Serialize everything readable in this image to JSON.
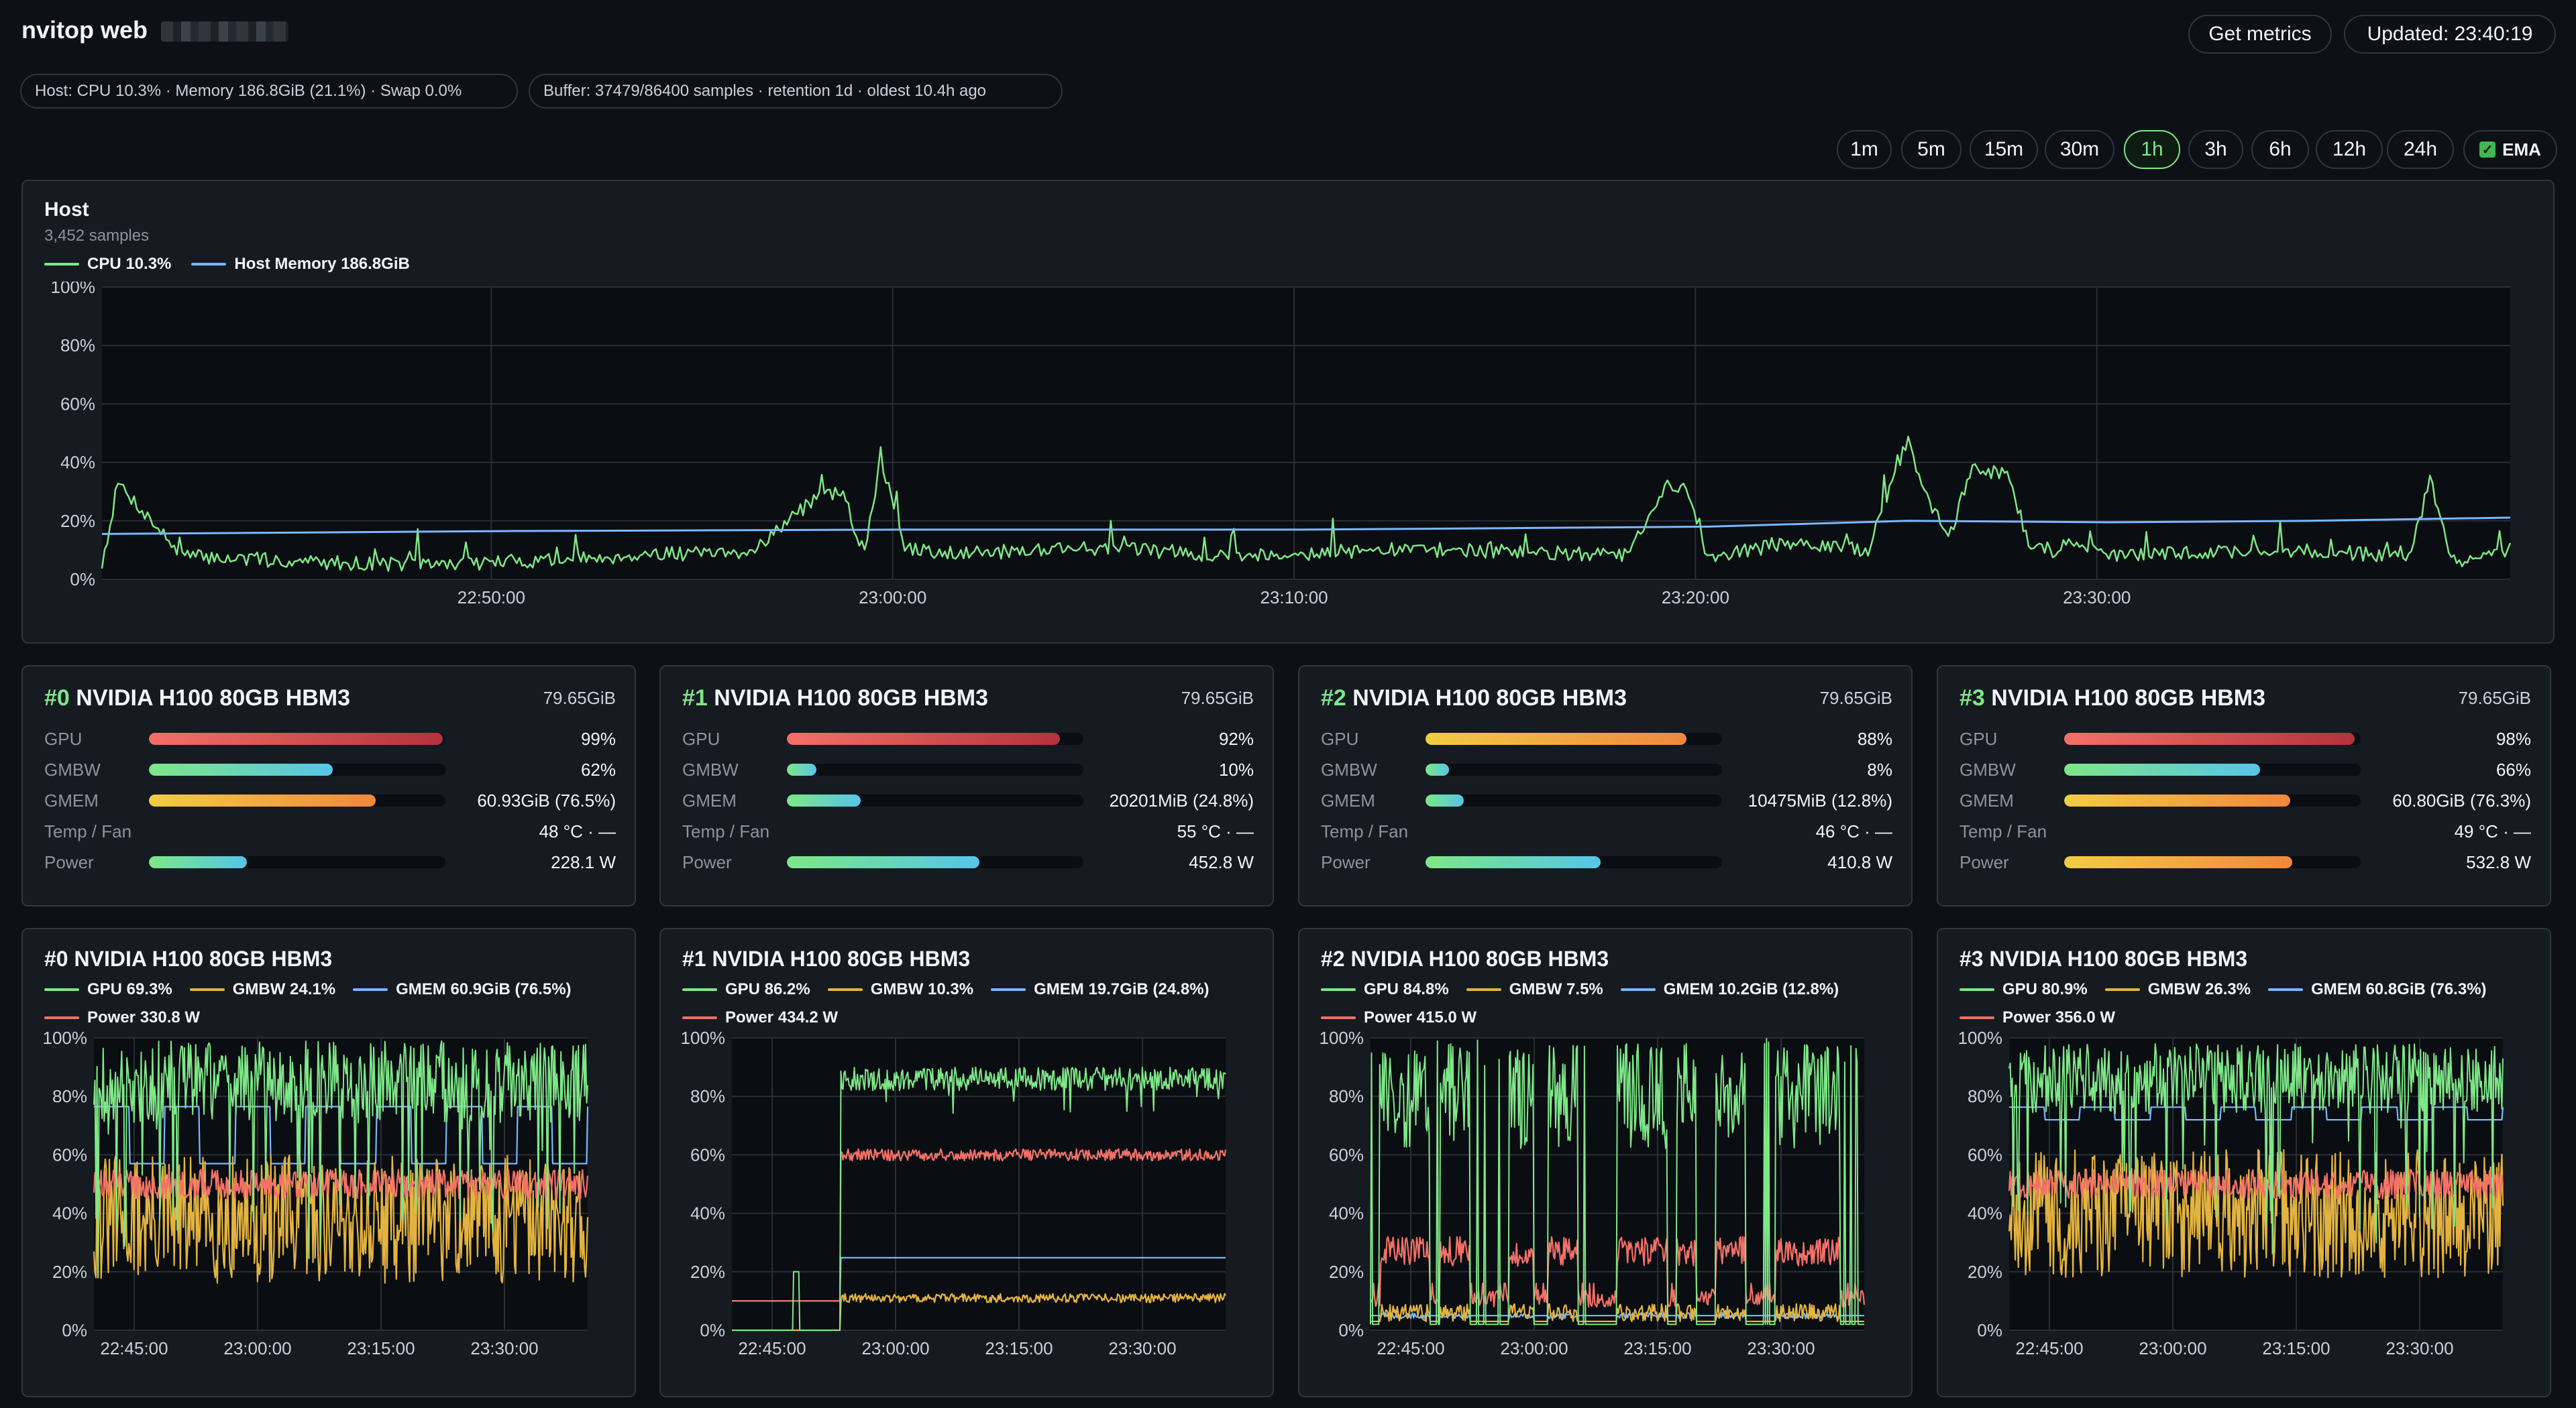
{
  "header": {
    "title": "nvitop web",
    "get_metrics": "Get metrics",
    "updated": "Updated: 23:40:19",
    "host_pill": "Host: CPU 10.3% · Memory 186.8GiB (21.1%) · Swap 0.0%",
    "buffer_pill": "Buffer: 37479/86400 samples · retention 1d · oldest 10.4h ago"
  },
  "ranges": {
    "items": [
      "1m",
      "5m",
      "15m",
      "30m",
      "1h",
      "3h",
      "6h",
      "12h",
      "24h"
    ],
    "active": "1h",
    "ema_label": "EMA",
    "ema_checked": true
  },
  "host": {
    "title": "Host",
    "samples": "3,452 samples",
    "legend": [
      {
        "label": "CPU 10.3%",
        "color": "#7ee787"
      },
      {
        "label": "Host Memory 186.8GiB",
        "color": "#79b8ff"
      }
    ]
  },
  "colors": {
    "gpu": "#7ee787",
    "gmbw": "#e3b341",
    "gmem": "#79b8ff",
    "power": "#f47067",
    "grid": "#2a2f36",
    "plot_bg": "#0a0d12",
    "axis_text": "#c9d1d9"
  },
  "gpus": [
    {
      "index": "#0",
      "name": "NVIDIA H100 80GB HBM3",
      "mem_total": "79.65GiB",
      "stats": [
        {
          "label": "GPU",
          "value": "99%",
          "fill": 0.99,
          "bar": "red"
        },
        {
          "label": "GMBW",
          "value": "62%",
          "fill": 0.62,
          "bar": "green-cyan"
        },
        {
          "label": "GMEM",
          "value": "60.93GiB (76.5%)",
          "fill": 0.765,
          "bar": "yellow-orange"
        },
        {
          "label": "Temp / Fan",
          "value": "48 °C  ·  —",
          "fill": null,
          "bar": null
        },
        {
          "label": "Power",
          "value": "228.1 W",
          "fill": 0.33,
          "bar": "green-cyan"
        }
      ],
      "chart_title": "#0 NVIDIA H100 80GB HBM3",
      "legend": [
        {
          "label": "GPU 69.3%",
          "color": "#7ee787"
        },
        {
          "label": "GMBW 24.1%",
          "color": "#e3b341"
        },
        {
          "label": "GMEM 60.9GiB (76.5%)",
          "color": "#79b8ff"
        },
        {
          "label": "Power 330.8 W",
          "color": "#f47067"
        }
      ]
    },
    {
      "index": "#1",
      "name": "NVIDIA H100 80GB HBM3",
      "mem_total": "79.65GiB",
      "stats": [
        {
          "label": "GPU",
          "value": "92%",
          "fill": 0.92,
          "bar": "red"
        },
        {
          "label": "GMBW",
          "value": "10%",
          "fill": 0.1,
          "bar": "green-cyan"
        },
        {
          "label": "GMEM",
          "value": "20201MiB (24.8%)",
          "fill": 0.248,
          "bar": "green-cyan"
        },
        {
          "label": "Temp / Fan",
          "value": "55 °C  ·  —",
          "fill": null,
          "bar": null
        },
        {
          "label": "Power",
          "value": "452.8 W",
          "fill": 0.65,
          "bar": "green-cyan"
        }
      ],
      "chart_title": "#1 NVIDIA H100 80GB HBM3",
      "legend": [
        {
          "label": "GPU 86.2%",
          "color": "#7ee787"
        },
        {
          "label": "GMBW 10.3%",
          "color": "#e3b341"
        },
        {
          "label": "GMEM 19.7GiB (24.8%)",
          "color": "#79b8ff"
        },
        {
          "label": "Power 434.2 W",
          "color": "#f47067"
        }
      ]
    },
    {
      "index": "#2",
      "name": "NVIDIA H100 80GB HBM3",
      "mem_total": "79.65GiB",
      "stats": [
        {
          "label": "GPU",
          "value": "88%",
          "fill": 0.88,
          "bar": "yellow-orange"
        },
        {
          "label": "GMBW",
          "value": "8%",
          "fill": 0.08,
          "bar": "green-cyan"
        },
        {
          "label": "GMEM",
          "value": "10475MiB (12.8%)",
          "fill": 0.128,
          "bar": "green-cyan"
        },
        {
          "label": "Temp / Fan",
          "value": "46 °C  ·  —",
          "fill": null,
          "bar": null
        },
        {
          "label": "Power",
          "value": "410.8 W",
          "fill": 0.59,
          "bar": "green-cyan"
        }
      ],
      "chart_title": "#2 NVIDIA H100 80GB HBM3",
      "legend": [
        {
          "label": "GPU 84.8%",
          "color": "#7ee787"
        },
        {
          "label": "GMBW 7.5%",
          "color": "#e3b341"
        },
        {
          "label": "GMEM 10.2GiB (12.8%)",
          "color": "#79b8ff"
        },
        {
          "label": "Power 415.0 W",
          "color": "#f47067"
        }
      ]
    },
    {
      "index": "#3",
      "name": "NVIDIA H100 80GB HBM3",
      "mem_total": "79.65GiB",
      "stats": [
        {
          "label": "GPU",
          "value": "98%",
          "fill": 0.98,
          "bar": "red"
        },
        {
          "label": "GMBW",
          "value": "66%",
          "fill": 0.66,
          "bar": "green-cyan"
        },
        {
          "label": "GMEM",
          "value": "60.80GiB (76.3%)",
          "fill": 0.763,
          "bar": "yellow-orange"
        },
        {
          "label": "Temp / Fan",
          "value": "49 °C  ·  —",
          "fill": null,
          "bar": null
        },
        {
          "label": "Power",
          "value": "532.8 W",
          "fill": 0.77,
          "bar": "yellow-orange"
        }
      ],
      "chart_title": "#3 NVIDIA H100 80GB HBM3",
      "legend": [
        {
          "label": "GPU 80.9%",
          "color": "#7ee787"
        },
        {
          "label": "GMBW 26.3%",
          "color": "#e3b341"
        },
        {
          "label": "GMEM 60.8GiB (76.3%)",
          "color": "#79b8ff"
        },
        {
          "label": "Power 356.0 W",
          "color": "#f47067"
        }
      ]
    }
  ],
  "chart_data": [
    {
      "type": "line",
      "title": "Host",
      "ylabel": "",
      "y_ticks": [
        "0%",
        "20%",
        "40%",
        "60%",
        "80%",
        "100%"
      ],
      "x_ticks": [
        "22:50:00",
        "23:00:00",
        "23:10:00",
        "23:20:00",
        "23:30:00"
      ],
      "ylim": [
        0,
        100
      ],
      "x_range_minutes": [
        -60,
        0
      ],
      "x_tick_minutes": [
        -50.3,
        -40.3,
        -30.3,
        -20.3,
        -10.3
      ],
      "series": [
        {
          "name": "CPU 10.3%",
          "key": "cpu",
          "x": [
            -60,
            -59.6,
            -58,
            -55,
            -52,
            -50,
            -48,
            -46,
            -44,
            -42,
            -41.5,
            -41,
            -40.6,
            -40,
            -38,
            -36,
            -34,
            -32,
            -30,
            -28,
            -26,
            -24,
            -22,
            -21,
            -20.5,
            -20,
            -18,
            -16,
            -15,
            -14.6,
            -14,
            -13.4,
            -12.5,
            -12,
            -11.4,
            -10.8,
            -10,
            -8,
            -6,
            -4,
            -2.5,
            -2,
            -1.5,
            -1,
            0
          ],
          "values": [
            5,
            33,
            8,
            6,
            5,
            6,
            7,
            9,
            8,
            30,
            28,
            8,
            42,
            10,
            9,
            11,
            10,
            8,
            9,
            10,
            10,
            9,
            8,
            32,
            30,
            8,
            12,
            10,
            48,
            30,
            14,
            38,
            36,
            12,
            10,
            13,
            8,
            9,
            10,
            9,
            8,
            34,
            8,
            6,
            10
          ]
        },
        {
          "name": "Host Memory 186.8GiB",
          "key": "mem",
          "x": [
            -60,
            -50,
            -40,
            -30,
            -25,
            -20,
            -15,
            -10,
            -5,
            0
          ],
          "values": [
            15.5,
            16.5,
            17,
            17,
            17.5,
            18,
            20,
            19.5,
            20,
            21.1
          ]
        }
      ]
    },
    {
      "type": "line",
      "title": "#0 NVIDIA H100 80GB HBM3",
      "y_ticks": [
        "0%",
        "20%",
        "40%",
        "60%",
        "80%",
        "100%"
      ],
      "x_ticks": [
        "22:45:00",
        "23:00:00",
        "23:15:00",
        "23:30:00"
      ],
      "ylim": [
        0,
        100
      ],
      "pattern": "busy",
      "series": [
        {
          "name": "GPU 69.3%",
          "key": "gpu",
          "base": 85,
          "jitter": 14,
          "dips": 0.35
        },
        {
          "name": "GMBW 24.1%",
          "key": "gmbw",
          "base": 38,
          "jitter": 22,
          "dips": 0
        },
        {
          "name": "GMEM 60.9GiB (76.5%)",
          "key": "gmem",
          "base": 76.5,
          "alt": 57,
          "jitter": 0,
          "dips": 0
        },
        {
          "name": "Power 330.8 W",
          "key": "power",
          "base": 50,
          "jitter": 5,
          "dips": 0
        }
      ]
    },
    {
      "type": "line",
      "title": "#1 NVIDIA H100 80GB HBM3",
      "y_ticks": [
        "0%",
        "20%",
        "40%",
        "60%",
        "80%",
        "100%"
      ],
      "x_ticks": [
        "22:45:00",
        "23:00:00",
        "23:15:00",
        "23:30:00"
      ],
      "ylim": [
        0,
        100
      ],
      "pattern": "start",
      "series": [
        {
          "name": "GPU 86.2%",
          "key": "gpu",
          "base": 86,
          "jitter": 4,
          "dips": 0
        },
        {
          "name": "GMBW 10.3%",
          "key": "gmbw",
          "base": 11,
          "jitter": 1.5,
          "dips": 0
        },
        {
          "name": "GMEM 19.7GiB (24.8%)",
          "key": "gmem",
          "base": 24.8,
          "jitter": 0,
          "dips": 0
        },
        {
          "name": "Power 434.2 W",
          "key": "power",
          "base": 60,
          "jitter": 2,
          "dips": 0
        }
      ]
    },
    {
      "type": "line",
      "title": "#2 NVIDIA H100 80GB HBM3",
      "y_ticks": [
        "0%",
        "20%",
        "40%",
        "60%",
        "80%",
        "100%"
      ],
      "x_ticks": [
        "22:45:00",
        "23:00:00",
        "23:15:00",
        "23:30:00"
      ],
      "ylim": [
        0,
        100
      ],
      "pattern": "bursty",
      "series": [
        {
          "name": "GPU 84.8%",
          "key": "gpu",
          "base": 55,
          "jitter": 18,
          "dips": 0.5
        },
        {
          "name": "GMBW 7.5%",
          "key": "gmbw",
          "base": 3,
          "jitter": 3,
          "dips": 0
        },
        {
          "name": "GMEM 10.2GiB (12.8%)",
          "key": "gmem",
          "base": 4,
          "jitter": 2,
          "dips": 0
        },
        {
          "name": "Power 415.0 W",
          "key": "power",
          "base": 25,
          "jitter": 6,
          "dips": 0
        }
      ]
    },
    {
      "type": "line",
      "title": "#3 NVIDIA H100 80GB HBM3",
      "y_ticks": [
        "0%",
        "20%",
        "40%",
        "60%",
        "80%",
        "100%"
      ],
      "x_ticks": [
        "22:45:00",
        "23:00:00",
        "23:15:00",
        "23:30:00"
      ],
      "ylim": [
        0,
        100
      ],
      "pattern": "busy",
      "series": [
        {
          "name": "GPU 80.9%",
          "key": "gpu",
          "base": 86,
          "jitter": 12,
          "dips": 0.3
        },
        {
          "name": "GMBW 26.3%",
          "key": "gmbw",
          "base": 40,
          "jitter": 22,
          "dips": 0
        },
        {
          "name": "GMEM 60.8GiB (76.3%)",
          "key": "gmem",
          "base": 76.3,
          "alt": 72,
          "jitter": 0,
          "dips": 0
        },
        {
          "name": "Power 356.0 W",
          "key": "power",
          "base": 50,
          "jitter": 5,
          "dips": 0
        }
      ]
    }
  ]
}
